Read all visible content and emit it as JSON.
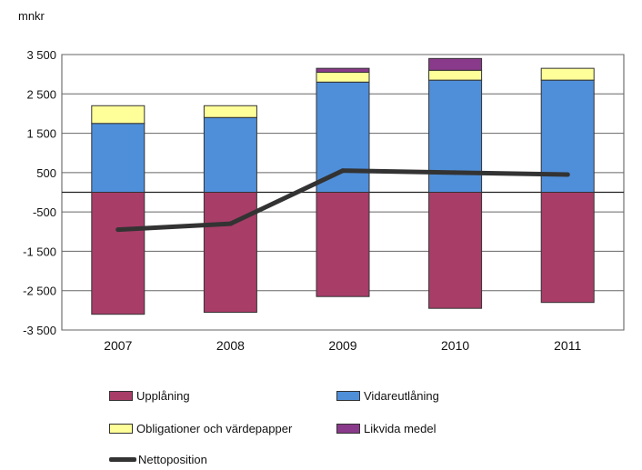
{
  "chart_data": {
    "type": "bar",
    "stacked": true,
    "unit_label": "mnkr",
    "categories": [
      "2007",
      "2008",
      "2009",
      "2010",
      "2011"
    ],
    "ylim": [
      -3500,
      3500
    ],
    "yticks": [
      3500,
      2500,
      1500,
      500,
      -500,
      -1500,
      -2500,
      -3500
    ],
    "ytick_labels": [
      "3 500",
      "2 500",
      "1 500",
      "500",
      "-500",
      "-1 500",
      "-2 500",
      "-3 500"
    ],
    "grid": true,
    "legend_position": "bottom",
    "series": [
      {
        "name": "Upplåning",
        "color": "#a83d68",
        "values": [
          -3100,
          -3050,
          -2650,
          -2950,
          -2800
        ]
      },
      {
        "name": "Vidareutlåning",
        "color": "#4f8fd9",
        "values": [
          1750,
          1900,
          2800,
          2850,
          2850
        ]
      },
      {
        "name": "Obligationer och värdepapper",
        "color": "#ffff99",
        "values": [
          450,
          300,
          250,
          250,
          300
        ]
      },
      {
        "name": "Likvida medel",
        "color": "#8a3a8a",
        "values": [
          0,
          0,
          100,
          300,
          0
        ]
      }
    ],
    "line_series": {
      "name": "Nettoposition",
      "color": "#333333",
      "values": [
        -950,
        -800,
        550,
        500,
        450
      ]
    }
  }
}
